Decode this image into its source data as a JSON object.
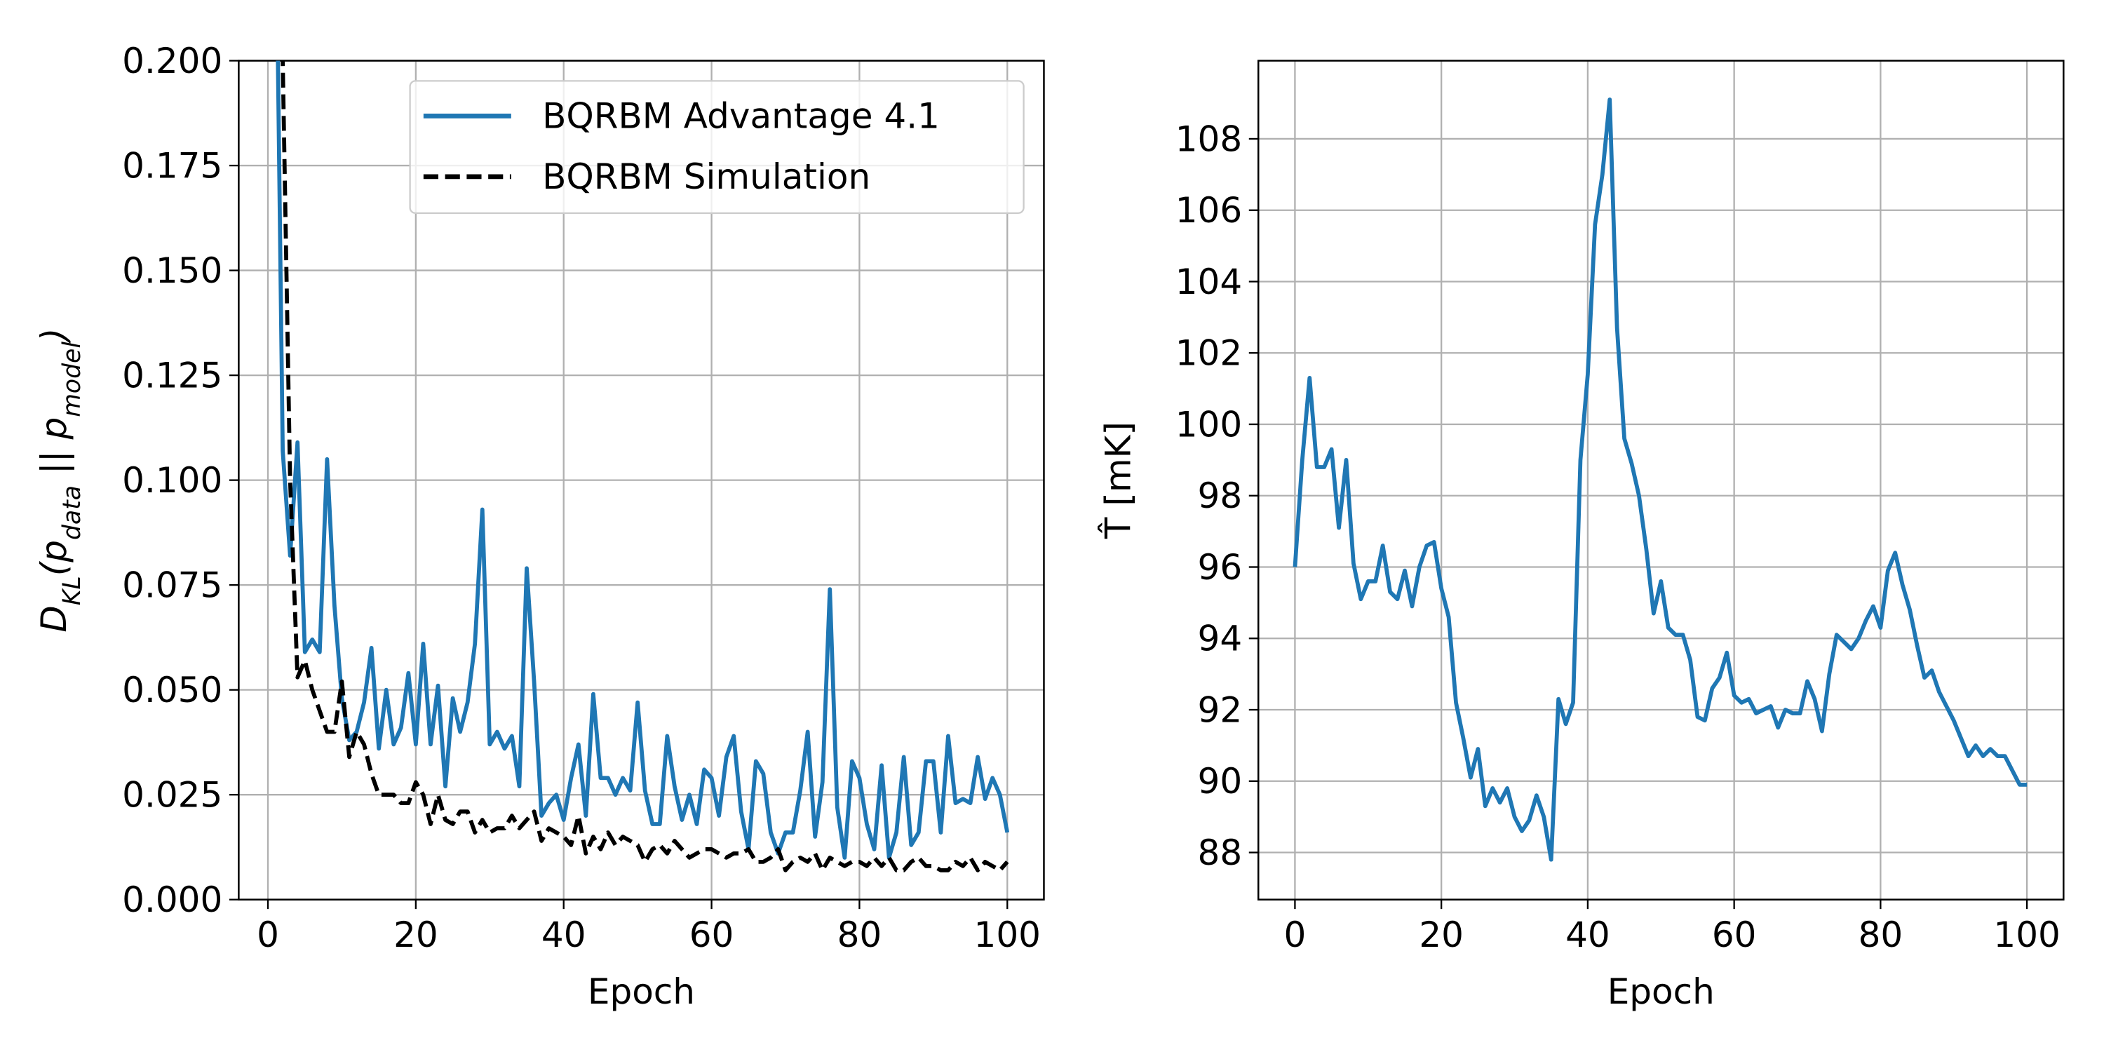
{
  "chart_data": [
    {
      "type": "line",
      "xlabel": "Epoch",
      "ylabel": [
        {
          "text": "D"
        },
        {
          "text": "KL",
          "sub": true
        },
        {
          "text": "(p"
        },
        {
          "text": "data",
          "sub": true
        },
        {
          "text": " || p"
        },
        {
          "text": "model",
          "sub": true
        },
        {
          "text": ")"
        }
      ],
      "xlim": [
        -3.95,
        104.95
      ],
      "ylim": [
        0,
        0.2
      ],
      "grid": true,
      "legend": "upper right",
      "xticks": [
        0,
        20,
        40,
        60,
        80,
        100
      ],
      "yticks": [
        {
          "value": 0,
          "label": "0.000"
        },
        {
          "value": 0.025,
          "label": "0.025"
        },
        {
          "value": 0.05,
          "label": "0.050"
        },
        {
          "value": 0.075,
          "label": "0.075"
        },
        {
          "value": 0.1,
          "label": "0.100"
        },
        {
          "value": 0.125,
          "label": "0.125"
        },
        {
          "value": 0.15,
          "label": "0.150"
        },
        {
          "value": 0.175,
          "label": "0.175"
        },
        {
          "value": 0.2,
          "label": "0.200"
        }
      ],
      "x": [
        1,
        2,
        3,
        4,
        5,
        6,
        7,
        8,
        9,
        10,
        11,
        12,
        13,
        14,
        15,
        16,
        17,
        18,
        19,
        20,
        21,
        22,
        23,
        24,
        25,
        26,
        27,
        28,
        29,
        30,
        31,
        32,
        33,
        34,
        35,
        36,
        37,
        38,
        39,
        40,
        41,
        42,
        43,
        44,
        45,
        46,
        47,
        48,
        49,
        50,
        51,
        52,
        53,
        54,
        55,
        56,
        57,
        58,
        59,
        60,
        61,
        62,
        63,
        64,
        65,
        66,
        67,
        68,
        69,
        70,
        71,
        72,
        73,
        74,
        75,
        76,
        77,
        78,
        79,
        80,
        81,
        82,
        83,
        84,
        85,
        86,
        87,
        88,
        89,
        90,
        91,
        92,
        93,
        94,
        95,
        96,
        97,
        98,
        99,
        100
      ],
      "series": [
        {
          "name": "BQRBM Advantage 4.1",
          "color": "#1f77b4",
          "dash": false,
          "values": [
            0.25,
            0.107,
            0.082,
            0.109,
            0.059,
            0.062,
            0.059,
            0.105,
            0.07,
            0.048,
            0.038,
            0.04,
            0.047,
            0.06,
            0.036,
            0.05,
            0.037,
            0.041,
            0.054,
            0.037,
            0.061,
            0.037,
            0.051,
            0.027,
            0.048,
            0.04,
            0.047,
            0.061,
            0.093,
            0.037,
            0.04,
            0.036,
            0.039,
            0.027,
            0.079,
            0.052,
            0.02,
            0.023,
            0.025,
            0.019,
            0.029,
            0.037,
            0.02,
            0.049,
            0.029,
            0.029,
            0.025,
            0.029,
            0.026,
            0.047,
            0.026,
            0.018,
            0.018,
            0.039,
            0.027,
            0.019,
            0.025,
            0.018,
            0.031,
            0.029,
            0.02,
            0.034,
            0.039,
            0.021,
            0.012,
            0.033,
            0.03,
            0.016,
            0.011,
            0.016,
            0.016,
            0.026,
            0.04,
            0.015,
            0.028,
            0.074,
            0.022,
            0.01,
            0.033,
            0.029,
            0.018,
            0.012,
            0.032,
            0.01,
            0.016,
            0.034,
            0.013,
            0.016,
            0.033,
            0.033,
            0.016,
            0.039,
            0.023,
            0.024,
            0.023,
            0.034,
            0.024,
            0.029,
            0.025,
            0.016
          ]
        },
        {
          "name": "BQRBM Simulation",
          "color": "#000000",
          "dash": true,
          "values": [
            0.3,
            0.2,
            0.1,
            0.053,
            0.057,
            0.05,
            0.045,
            0.04,
            0.04,
            0.052,
            0.034,
            0.04,
            0.037,
            0.03,
            0.025,
            0.025,
            0.025,
            0.023,
            0.023,
            0.028,
            0.025,
            0.018,
            0.025,
            0.019,
            0.018,
            0.021,
            0.021,
            0.016,
            0.019,
            0.016,
            0.017,
            0.017,
            0.02,
            0.017,
            0.019,
            0.021,
            0.014,
            0.017,
            0.016,
            0.015,
            0.013,
            0.02,
            0.011,
            0.015,
            0.012,
            0.016,
            0.013,
            0.015,
            0.014,
            0.013,
            0.009,
            0.012,
            0.013,
            0.011,
            0.014,
            0.012,
            0.01,
            0.011,
            0.012,
            0.012,
            0.011,
            0.01,
            0.011,
            0.011,
            0.012,
            0.009,
            0.009,
            0.01,
            0.012,
            0.007,
            0.009,
            0.01,
            0.009,
            0.011,
            0.007,
            0.01,
            0.009,
            0.008,
            0.009,
            0.009,
            0.008,
            0.01,
            0.008,
            0.01,
            0.007,
            0.007,
            0.009,
            0.01,
            0.008,
            0.008,
            0.007,
            0.007,
            0.009,
            0.008,
            0.01,
            0.007,
            0.009,
            0.008,
            0.007,
            0.009
          ]
        }
      ]
    },
    {
      "type": "line",
      "xlabel": "Epoch",
      "ylabel": "T̂ [mK]",
      "xlim": [
        -5,
        105
      ],
      "ylim": [
        86.68,
        110.19
      ],
      "grid": true,
      "xticks": [
        0,
        20,
        40,
        60,
        80,
        100
      ],
      "yticks": [
        88,
        90,
        92,
        94,
        96,
        98,
        100,
        102,
        104,
        106,
        108
      ],
      "x": [
        0,
        1,
        2,
        3,
        4,
        5,
        6,
        7,
        8,
        9,
        10,
        11,
        12,
        13,
        14,
        15,
        16,
        17,
        18,
        19,
        20,
        21,
        22,
        23,
        24,
        25,
        26,
        27,
        28,
        29,
        30,
        31,
        32,
        33,
        34,
        35,
        36,
        37,
        38,
        39,
        40,
        41,
        42,
        43,
        44,
        45,
        46,
        47,
        48,
        49,
        50,
        51,
        52,
        53,
        54,
        55,
        56,
        57,
        58,
        59,
        60,
        61,
        62,
        63,
        64,
        65,
        66,
        67,
        68,
        69,
        70,
        71,
        72,
        73,
        74,
        75,
        76,
        77,
        78,
        79,
        80,
        81,
        82,
        83,
        84,
        85,
        86,
        87,
        88,
        89,
        90,
        91,
        92,
        93,
        94,
        95,
        96,
        97,
        98,
        99,
        100
      ],
      "series": [
        {
          "color": "#1f77b4",
          "dash": false,
          "values": [
            96.0,
            99.0,
            101.3,
            98.8,
            98.8,
            99.3,
            97.1,
            99.0,
            96.1,
            95.1,
            95.6,
            95.6,
            96.6,
            95.3,
            95.1,
            95.9,
            94.9,
            96.0,
            96.6,
            96.7,
            95.4,
            94.6,
            92.2,
            91.2,
            90.1,
            90.9,
            89.3,
            89.8,
            89.4,
            89.8,
            89.0,
            88.6,
            88.9,
            89.6,
            89.0,
            87.8,
            92.3,
            91.6,
            92.2,
            99.0,
            101.4,
            105.6,
            107.0,
            109.1,
            102.7,
            99.6,
            98.9,
            98.0,
            96.5,
            94.7,
            95.6,
            94.3,
            94.1,
            94.1,
            93.4,
            91.8,
            91.7,
            92.6,
            92.9,
            93.6,
            92.4,
            92.2,
            92.3,
            91.9,
            92.0,
            92.1,
            91.5,
            92.0,
            91.9,
            91.9,
            92.8,
            92.3,
            91.4,
            93.0,
            94.1,
            93.9,
            93.7,
            94.0,
            94.5,
            94.9,
            94.3,
            95.9,
            96.4,
            95.5,
            94.8,
            93.8,
            92.9,
            93.1,
            92.5,
            92.1,
            91.7,
            91.2,
            90.7,
            91.0,
            90.7,
            90.9,
            90.7,
            90.7,
            90.3,
            89.9,
            89.9
          ]
        }
      ]
    }
  ]
}
